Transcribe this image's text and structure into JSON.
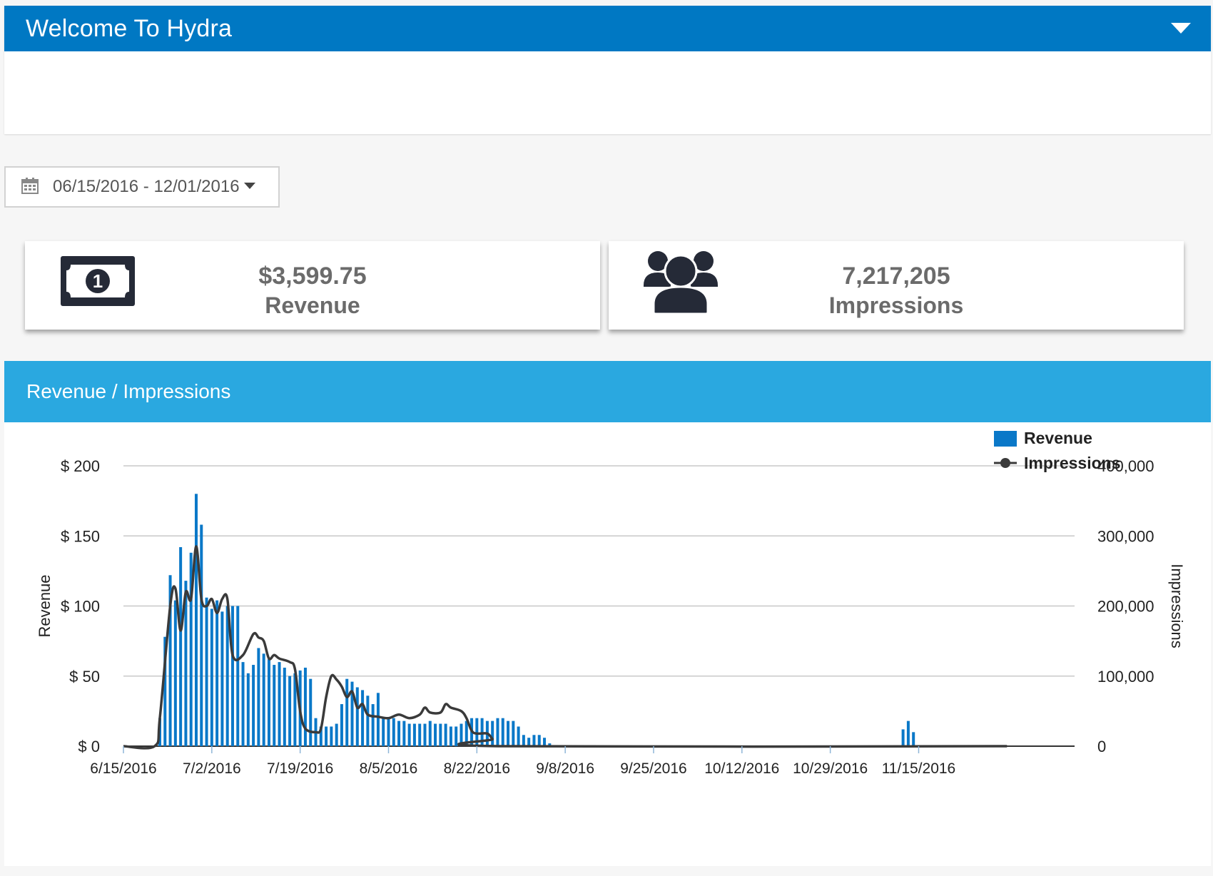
{
  "header": {
    "title": "Welcome To Hydra"
  },
  "date_range": "06/15/2016 - 12/01/2016",
  "stats": {
    "revenue": {
      "value": "$3,599.75",
      "label": "Revenue"
    },
    "impressions": {
      "value": "7,217,205",
      "label": "Impressions"
    }
  },
  "chart_panel": {
    "title": "Revenue / Impressions"
  },
  "colors": {
    "header_blue": "#0078c3",
    "panel_header_blue": "#2aa8e0",
    "revenue_bar": "#0a78c8",
    "impressions_line": "#3a3a3a",
    "icon_dark": "#252a37"
  },
  "icons": {
    "date_picker": "calendar-icon",
    "revenue": "money-bill-icon",
    "impressions": "users-group-icon",
    "collapse": "caret-down-icon"
  },
  "chart_data": {
    "type": "bar",
    "start_date": "6/15/2016",
    "x_ticks": [
      "6/15/2016",
      "7/2/2016",
      "7/19/2016",
      "8/5/2016",
      "8/22/2016",
      "9/8/2016",
      "9/25/2016",
      "10/12/2016",
      "10/29/2016",
      "11/15/2016"
    ],
    "ylabel": "Revenue",
    "ylabel_right": "Impressions",
    "y_ticks": [
      "$ 0",
      "$ 50",
      "$ 100",
      "$ 150",
      "$ 200"
    ],
    "y2_ticks": [
      "0",
      "100,000",
      "200,000",
      "300,000",
      "400,000"
    ],
    "ylim": [
      0,
      200
    ],
    "y2lim": [
      0,
      400000
    ],
    "legend": {
      "position": "top-right",
      "items": [
        "Revenue",
        "Impressions"
      ]
    },
    "series": [
      {
        "name": "Revenue",
        "kind": "bar",
        "values": [
          0,
          0,
          0,
          0,
          0,
          0,
          0,
          20,
          78,
          122,
          104,
          142,
          118,
          138,
          180,
          158,
          106,
          98,
          104,
          96,
          100,
          100,
          100,
          60,
          52,
          58,
          70,
          66,
          62,
          58,
          60,
          56,
          50,
          52,
          54,
          56,
          48,
          20,
          14,
          14,
          14,
          16,
          30,
          48,
          46,
          42,
          40,
          36,
          30,
          38,
          20,
          20,
          20,
          18,
          18,
          16,
          16,
          16,
          16,
          18,
          16,
          16,
          16,
          14,
          14,
          16,
          18,
          20,
          20,
          20,
          18,
          18,
          20,
          20,
          18,
          18,
          14,
          8,
          6,
          8,
          8,
          6,
          2,
          0,
          0,
          0,
          0,
          0,
          0,
          0,
          0,
          0,
          0,
          0,
          0,
          0,
          0,
          0,
          0,
          0,
          0,
          0,
          0,
          0,
          0,
          0,
          0,
          0,
          0,
          0,
          0,
          0,
          0,
          0,
          0,
          0,
          0,
          0,
          0,
          0,
          0,
          0,
          0,
          0,
          0,
          0,
          0,
          0,
          0,
          0,
          0,
          0,
          0,
          0,
          0,
          0,
          0,
          0,
          0,
          0,
          0,
          0,
          0,
          0,
          0,
          0,
          0,
          0,
          0,
          0,
          12,
          18,
          10,
          0,
          0,
          0,
          0,
          0,
          0,
          0,
          0,
          0,
          0,
          0,
          0,
          0,
          0,
          0,
          0,
          0,
          0,
          0,
          0,
          0,
          0,
          0,
          0,
          0,
          0,
          0,
          0,
          0,
          0,
          0
        ]
      },
      {
        "name": "Impressions",
        "kind": "line",
        "points": [
          [
            0,
            0
          ],
          [
            6,
            0
          ],
          [
            7,
            40000
          ],
          [
            9,
            200000
          ],
          [
            10,
            225000
          ],
          [
            11,
            165000
          ],
          [
            12,
            220000
          ],
          [
            13,
            210000
          ],
          [
            14,
            285000
          ],
          [
            15,
            210000
          ],
          [
            16,
            200000
          ],
          [
            17,
            210000
          ],
          [
            18,
            190000
          ],
          [
            19,
            210000
          ],
          [
            20,
            210000
          ],
          [
            21,
            130000
          ],
          [
            23,
            130000
          ],
          [
            25,
            160000
          ],
          [
            26,
            155000
          ],
          [
            27,
            150000
          ],
          [
            28,
            125000
          ],
          [
            29,
            130000
          ],
          [
            30,
            125000
          ],
          [
            32,
            120000
          ],
          [
            33,
            110000
          ],
          [
            34,
            50000
          ],
          [
            35,
            25000
          ],
          [
            37,
            20000
          ],
          [
            38,
            25000
          ],
          [
            39,
            70000
          ],
          [
            40,
            100000
          ],
          [
            41,
            95000
          ],
          [
            42,
            85000
          ],
          [
            43,
            70000
          ],
          [
            44,
            78000
          ],
          [
            45,
            55000
          ],
          [
            46,
            60000
          ],
          [
            47,
            45000
          ],
          [
            49,
            42000
          ],
          [
            51,
            40000
          ],
          [
            53,
            45000
          ],
          [
            55,
            40000
          ],
          [
            57,
            45000
          ],
          [
            58,
            55000
          ],
          [
            59,
            48000
          ],
          [
            61,
            48000
          ],
          [
            62,
            60000
          ],
          [
            63,
            55000
          ],
          [
            65,
            50000
          ],
          [
            66,
            40000
          ],
          [
            67,
            22000
          ],
          [
            68,
            18000
          ],
          [
            70,
            18000
          ],
          [
            71,
            10000
          ],
          [
            72,
            0
          ],
          [
            170,
            0
          ]
        ]
      }
    ]
  }
}
